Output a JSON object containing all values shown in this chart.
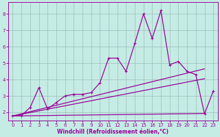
{
  "xlabel": "Windchill (Refroidissement éolien,°C)",
  "bg_color": "#c5ece4",
  "line_color": "#990099",
  "grid_color": "#99bbbb",
  "xlim": [
    -0.5,
    23.5
  ],
  "ylim": [
    1.5,
    8.7
  ],
  "xticks": [
    0,
    1,
    2,
    3,
    4,
    5,
    6,
    7,
    8,
    9,
    10,
    11,
    12,
    13,
    14,
    15,
    16,
    17,
    18,
    19,
    20,
    21,
    22,
    23
  ],
  "yticks": [
    2,
    3,
    4,
    5,
    6,
    7,
    8
  ],
  "main_x": [
    0,
    1,
    2,
    3,
    4,
    5,
    6,
    7,
    8,
    9,
    10,
    11,
    12,
    13,
    14,
    15,
    16,
    17,
    18,
    19,
    20,
    21,
    22,
    23
  ],
  "main_y": [
    1.8,
    1.8,
    2.3,
    3.5,
    2.2,
    2.6,
    3.0,
    3.1,
    3.1,
    3.2,
    3.8,
    5.3,
    5.3,
    4.5,
    6.2,
    8.0,
    6.5,
    8.2,
    4.9,
    5.1,
    4.5,
    4.3,
    1.9,
    3.3
  ],
  "line2_x": [
    0,
    22
  ],
  "line2_y": [
    1.78,
    1.93
  ],
  "line3_x": [
    0,
    22
  ],
  "line3_y": [
    1.78,
    4.65
  ],
  "line4_x": [
    0,
    22
  ],
  "line4_y": [
    1.78,
    4.05
  ],
  "xlabel_fontsize": 5.5,
  "tick_fontsize": 5,
  "linewidth": 0.9
}
